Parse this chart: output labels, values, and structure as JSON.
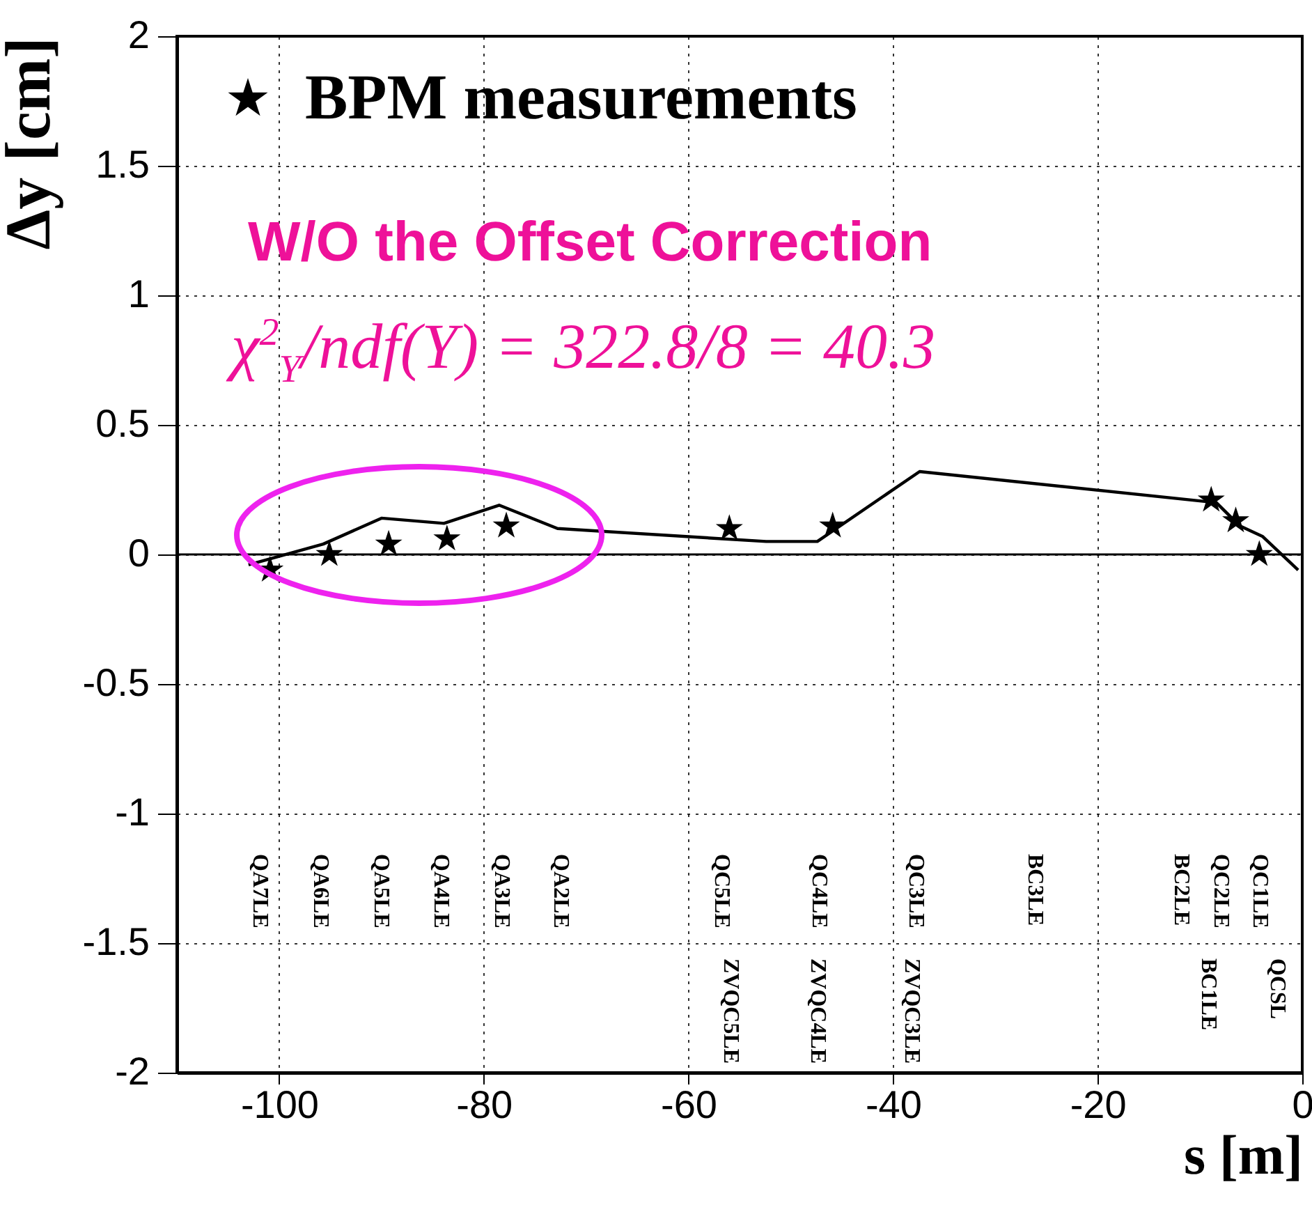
{
  "chart_data": {
    "type": "scatter",
    "xlabel": "s   [m]",
    "ylabel": "Δy   [cm]",
    "xlim": [
      -110,
      0
    ],
    "xticks": [
      -100,
      -80,
      -60,
      -40,
      -20,
      0
    ],
    "ylim": [
      -2,
      2
    ],
    "yticks": [
      -2,
      -1.5,
      -1,
      -0.5,
      0,
      0.5,
      1,
      1.5,
      2
    ],
    "grid": true,
    "legend": "top left",
    "series": [
      {
        "name": "BPM measurements",
        "color": "#000000",
        "marker": "star",
        "x": [
          -100.9,
          -95.1,
          -89.3,
          -83.6,
          -77.8,
          -56.0,
          -45.9,
          -8.9,
          -6.5,
          -4.2
        ],
        "values": [
          -0.06,
          0.0,
          0.04,
          0.06,
          0.11,
          0.1,
          0.11,
          0.21,
          0.13,
          0.0
        ]
      },
      {
        "type": "line",
        "color": "#000000",
        "line_style": "solid",
        "x": [
          -103,
          -95.7,
          -90,
          -83.9,
          -78.5,
          -72.8,
          -52.4,
          -47.4,
          -37.4,
          -8.4,
          -6.1,
          -3.9,
          -0.4
        ],
        "values": [
          -0.04,
          0.04,
          0.14,
          0.12,
          0.19,
          0.1,
          0.05,
          0.05,
          0.32,
          0.2,
          0.11,
          0.07,
          -0.06
        ]
      }
    ],
    "ref_lines": [
      {
        "axis": "y",
        "value": 0,
        "color": "#000000"
      }
    ],
    "annotations": [
      "W/O the Offset Correction",
      "χ$^{2}$$_{Y}$/ndf(Y) = 322.8/8 = 40.3",
      "QA7LE",
      "QA6LE",
      "QA5LE",
      "QA4LE",
      "QA3LE",
      "QA2LE",
      "QC5LE",
      "QC4LE",
      "QC3LE",
      "BC3LE",
      "BC2LE",
      "QC2LE",
      "QC1LE",
      "ZVQC5LE",
      "ZVQC4LE",
      "ZVQC3LE",
      "BC1LE",
      "QCSL"
    ]
  }
}
